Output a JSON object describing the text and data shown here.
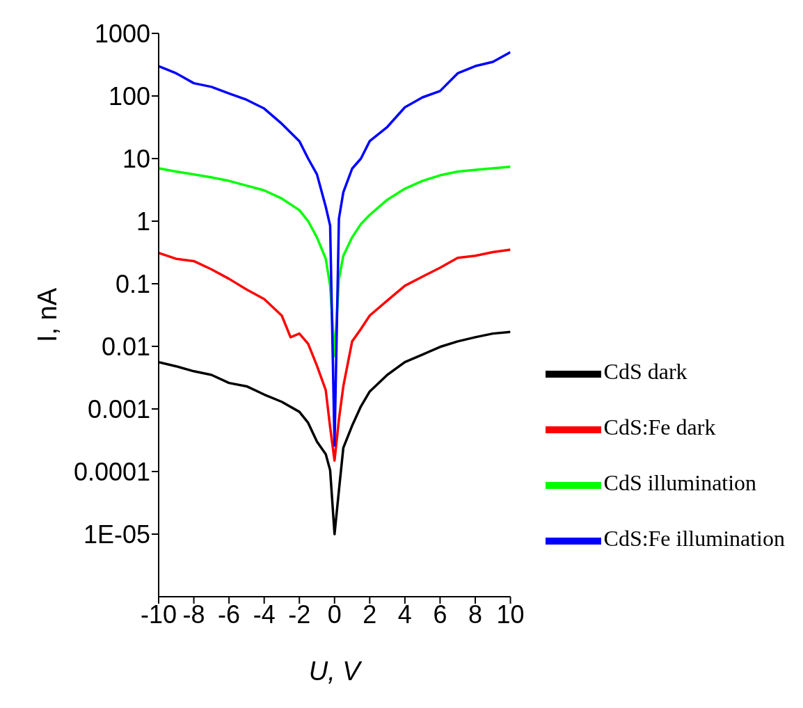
{
  "chart_data": {
    "type": "line",
    "xlabel": "U, V",
    "ylabel": "I, nA",
    "log": "y",
    "xlim": [
      -10,
      10
    ],
    "xticks": [
      -10,
      -8,
      -6,
      -4,
      -2,
      0,
      2,
      4,
      6,
      8,
      10
    ],
    "ylim": [
      1e-06,
      1000
    ],
    "yticks": [
      1000,
      100,
      10,
      1,
      0.1,
      0.01,
      0.001,
      0.0001,
      {
        "value": 1e-05,
        "label": "1E-05"
      }
    ],
    "grid": false,
    "legend": "bottom right",
    "marker": "none",
    "line_style": "solid",
    "series": [
      {
        "name": "CdS dark",
        "color": "#000000",
        "x": [
          -10,
          -9,
          -8,
          -7,
          -6,
          -5,
          -4,
          -3,
          -2,
          -1.5,
          -1,
          -0.5,
          -0.25,
          0,
          0.25,
          0.5,
          1,
          1.5,
          2,
          3,
          4,
          5,
          6,
          7,
          8,
          9,
          10
        ],
        "values": [
          0.0056,
          0.0048,
          0.004,
          0.0035,
          0.0026,
          0.0023,
          0.0017,
          0.0013,
          0.0009,
          0.0006,
          0.0003,
          0.00019,
          0.000105,
          1e-05,
          5e-05,
          0.00024,
          0.00054,
          0.0011,
          0.0019,
          0.0035,
          0.0056,
          0.0074,
          0.0098,
          0.012,
          0.014,
          0.016,
          0.017
        ]
      },
      {
        "name": "CdS:Fe dark",
        "color": "#ff0000",
        "x": [
          -10,
          -9,
          -8,
          -7,
          -6,
          -5,
          -4,
          -3,
          -2.5,
          -2,
          -1.5,
          -1,
          -0.5,
          -0.25,
          0,
          0.25,
          0.5,
          1,
          1.5,
          2,
          3,
          4,
          5,
          6,
          7,
          8,
          9,
          10
        ],
        "values": [
          0.31,
          0.25,
          0.23,
          0.17,
          0.12,
          0.081,
          0.057,
          0.031,
          0.014,
          0.016,
          0.011,
          0.0049,
          0.002,
          0.00051,
          0.00015,
          0.00068,
          0.0023,
          0.012,
          0.019,
          0.031,
          0.054,
          0.093,
          0.13,
          0.18,
          0.26,
          0.28,
          0.32,
          0.35
        ]
      },
      {
        "name": "CdS illumination",
        "color": "#00ff00",
        "x": [
          -10,
          -9,
          -8,
          -7,
          -6,
          -5,
          -4,
          -3,
          -2,
          -1.5,
          -1,
          -0.5,
          -0.25,
          0,
          0.25,
          0.5,
          1,
          1.5,
          2,
          3,
          4,
          5,
          6,
          7,
          8,
          9,
          10
        ],
        "values": [
          7,
          6.2,
          5.6,
          5,
          4.4,
          3.7,
          3.1,
          2.3,
          1.5,
          1,
          0.55,
          0.25,
          0.093,
          0.007,
          0.12,
          0.28,
          0.55,
          0.9,
          1.26,
          2.2,
          3.3,
          4.4,
          5.4,
          6.2,
          6.6,
          7,
          7.4
        ]
      },
      {
        "name": "CdS:Fe illumination",
        "color": "#0000ff",
        "x": [
          -10,
          -9,
          -8,
          -7,
          -6,
          -5,
          -4,
          -3,
          -2,
          -1.5,
          -1,
          -0.5,
          -0.25,
          0,
          0.25,
          0.5,
          1,
          1.5,
          2,
          3,
          4,
          5,
          6,
          7,
          8,
          9,
          10
        ],
        "values": [
          300,
          230,
          160,
          140,
          110,
          87,
          63,
          36,
          19,
          10,
          5.6,
          1.7,
          0.85,
          0.00026,
          1.1,
          2.9,
          6.9,
          10,
          19,
          32,
          66,
          95,
          120,
          230,
          300,
          350,
          500
        ]
      }
    ]
  }
}
